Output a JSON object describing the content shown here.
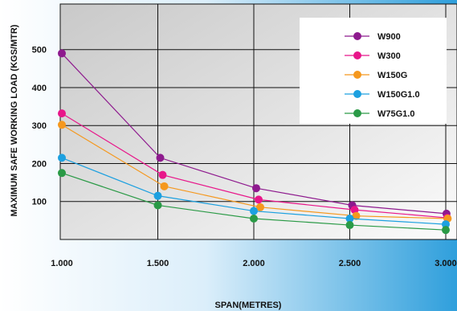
{
  "chart_data": {
    "type": "line",
    "title": "",
    "xlabel": "SPAN(METRES)",
    "ylabel": "MAXIMUM SAFE WORKING LOAD (KGS/MTR)",
    "x_ticks": [
      "1.000",
      "1.500",
      "2.000",
      "2.500",
      "3.000"
    ],
    "y_ticks": [
      "100",
      "200",
      "300",
      "400",
      "500"
    ],
    "xlim": [
      1.0,
      3.0
    ],
    "ylim": [
      0,
      620
    ],
    "grid": true,
    "legend_position": "top-right",
    "series": [
      {
        "name": "W900",
        "color": "#8e1a8e",
        "x": [
          1.0,
          1.5,
          2.0,
          2.5,
          3.0
        ],
        "y": [
          490,
          215,
          135,
          90,
          68
        ]
      },
      {
        "name": "W300",
        "color": "#e8168a",
        "x": [
          1.0,
          1.5,
          2.0,
          2.5,
          3.0
        ],
        "y": [
          332,
          170,
          105,
          78,
          57
        ]
      },
      {
        "name": "W150G",
        "color": "#f5981e",
        "x": [
          1.0,
          1.5,
          2.0,
          2.5,
          3.0
        ],
        "y": [
          302,
          140,
          85,
          62,
          55
        ]
      },
      {
        "name": "W150G1.0",
        "color": "#1ca0e0",
        "x": [
          1.0,
          1.5,
          2.0,
          2.5,
          3.0
        ],
        "y": [
          215,
          115,
          75,
          55,
          40
        ]
      },
      {
        "name": "W75G1.0",
        "color": "#2a9a46",
        "x": [
          1.0,
          1.5,
          2.0,
          2.5,
          3.0
        ],
        "y": [
          175,
          90,
          55,
          38,
          25
        ]
      }
    ]
  }
}
